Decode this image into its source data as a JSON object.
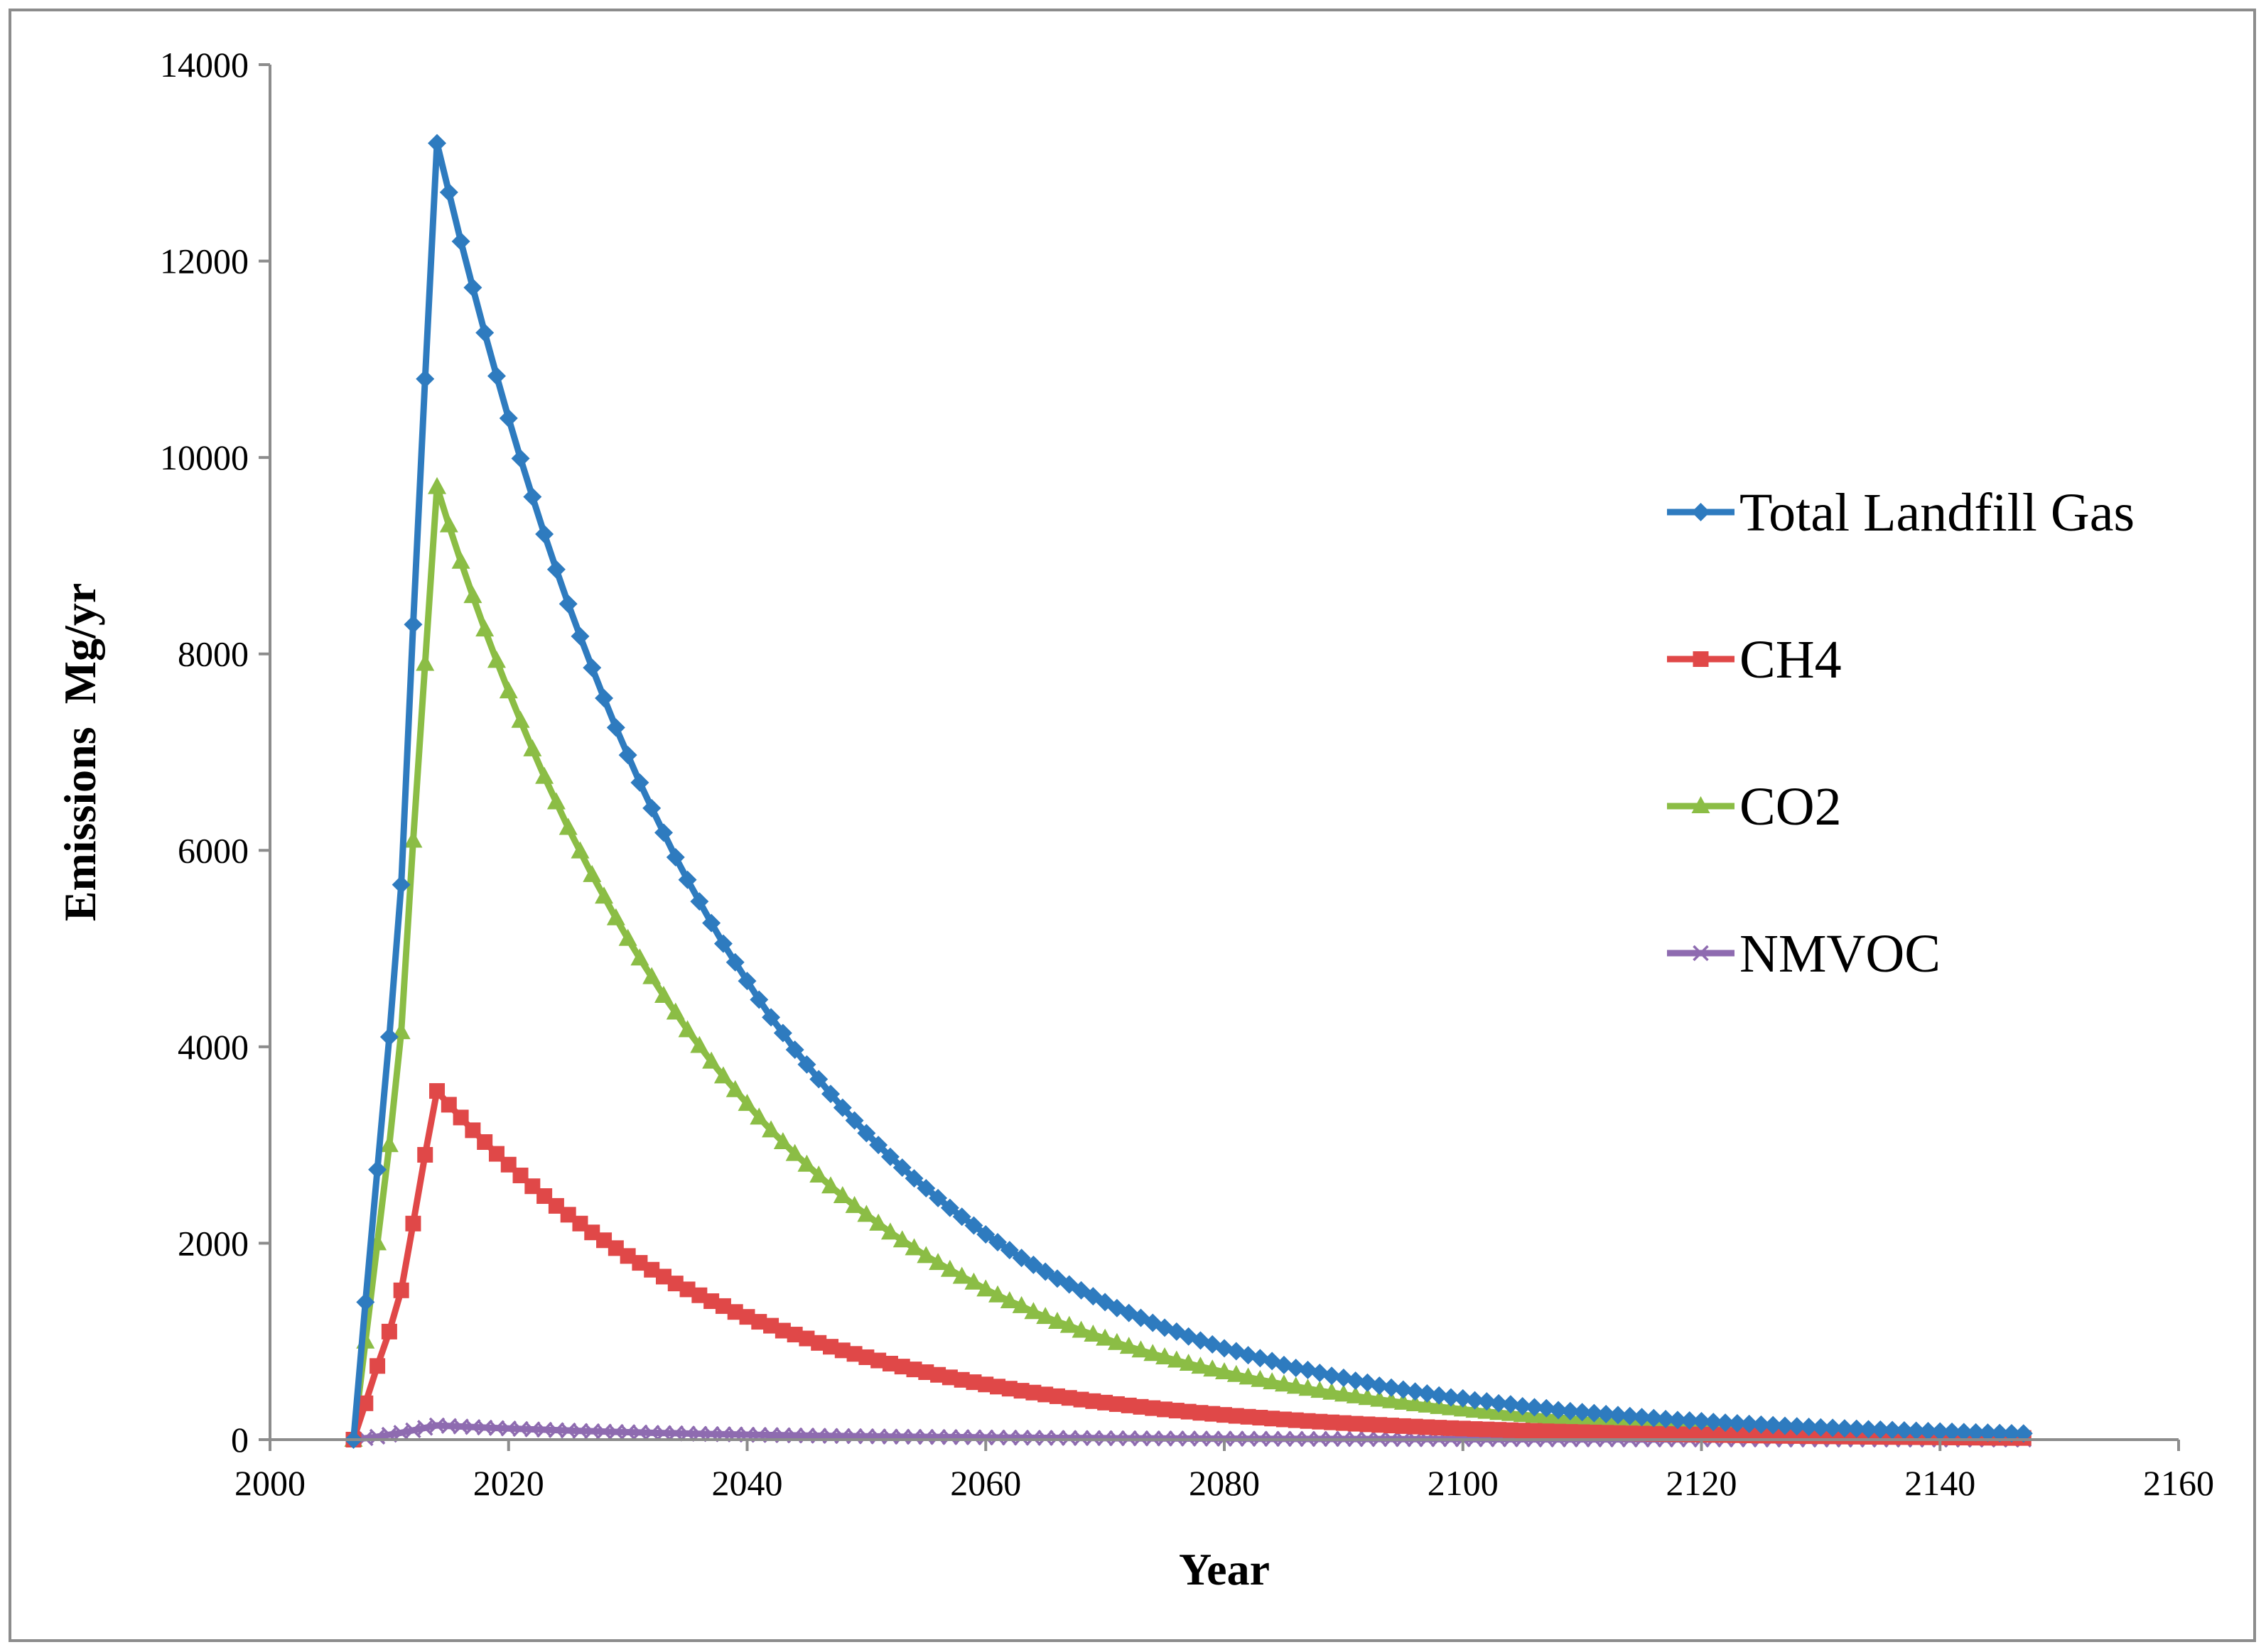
{
  "chart_data": {
    "type": "line",
    "title": "",
    "xlabel": "Year",
    "ylabel": "Emissions  Mg/yr",
    "xlim": [
      2000,
      2160
    ],
    "ylim": [
      0,
      14000
    ],
    "xticks": [
      2000,
      2020,
      2040,
      2060,
      2080,
      2100,
      2120,
      2140,
      2160
    ],
    "yticks": [
      0,
      2000,
      4000,
      6000,
      8000,
      10000,
      12000,
      14000
    ],
    "grid": false,
    "legend_position": "right",
    "x_start": 2007,
    "x_end": 2147,
    "series": [
      {
        "name": "Total Landfill Gas",
        "color": "#2e7bbf",
        "marker": "diamond",
        "values": [
          0,
          1400,
          2750,
          4100,
          5650,
          8300,
          10800,
          13200,
          12700,
          12200,
          11730,
          11270,
          10830,
          10400,
          9990,
          9600,
          9220,
          8860,
          8510,
          8180,
          7860,
          7550,
          7250,
          6970,
          6690,
          6430,
          6180,
          5930,
          5700,
          5480,
          5260,
          5050,
          4860,
          4670,
          4480,
          4300,
          4140,
          3970,
          3820,
          3670,
          3520,
          3380,
          3250,
          3120,
          3000,
          2880,
          2770,
          2660,
          2560,
          2460,
          2360,
          2270,
          2180,
          2090,
          2010,
          1930,
          1850,
          1780,
          1710,
          1640,
          1580,
          1520,
          1460,
          1400,
          1340,
          1290,
          1240,
          1190,
          1140,
          1100,
          1050,
          1010,
          970,
          930,
          900,
          860,
          830,
          800,
          760,
          730,
          710,
          680,
          650,
          630,
          600,
          580,
          550,
          530,
          510,
          490,
          470,
          450,
          430,
          420,
          400,
          390,
          370,
          360,
          340,
          330,
          320,
          300,
          290,
          280,
          270,
          260,
          250,
          240,
          230,
          220,
          210,
          200,
          195,
          188,
          180,
          173,
          166,
          160,
          153,
          147,
          141,
          136,
          130,
          125,
          120,
          115,
          111,
          106,
          102,
          98,
          94,
          90,
          87,
          83,
          80,
          77,
          74,
          71,
          68,
          65,
          63
        ]
      },
      {
        "name": "CH4",
        "color": "#e04848",
        "marker": "square",
        "values": [
          0,
          370,
          750,
          1100,
          1520,
          2200,
          2900,
          3550,
          3410,
          3280,
          3150,
          3030,
          2910,
          2800,
          2690,
          2580,
          2480,
          2380,
          2290,
          2200,
          2110,
          2030,
          1950,
          1870,
          1800,
          1730,
          1660,
          1590,
          1530,
          1470,
          1410,
          1360,
          1300,
          1250,
          1200,
          1160,
          1110,
          1070,
          1030,
          985,
          946,
          909,
          873,
          839,
          806,
          774,
          744,
          715,
          687,
          660,
          634,
          609,
          585,
          562,
          540,
          519,
          498,
          479,
          460,
          442,
          425,
          408,
          392,
          377,
          362,
          348,
          334,
          321,
          308,
          296,
          285,
          273,
          263,
          252,
          242,
          233,
          224,
          215,
          206,
          198,
          190,
          183,
          176,
          169,
          162,
          156,
          150,
          144,
          138,
          133,
          127,
          122,
          117,
          113,
          108,
          104,
          100,
          96,
          92,
          89,
          85,
          82,
          79,
          76,
          73,
          70,
          67,
          64,
          62,
          59,
          57,
          55,
          53,
          51,
          49,
          47,
          45,
          43,
          41,
          40,
          38,
          37,
          35,
          34,
          33,
          31,
          30,
          29,
          28,
          27,
          26,
          25,
          24,
          23,
          22,
          21,
          20,
          19,
          18,
          17,
          17
        ]
      },
      {
        "name": "CO2",
        "color": "#8bbd45",
        "marker": "triangle",
        "values": [
          0,
          1000,
          2000,
          3000,
          4150,
          6100,
          7900,
          9700,
          9310,
          8940,
          8590,
          8250,
          7930,
          7620,
          7320,
          7030,
          6750,
          6490,
          6230,
          5990,
          5750,
          5530,
          5310,
          5100,
          4900,
          4710,
          4520,
          4350,
          4170,
          4010,
          3850,
          3700,
          3560,
          3420,
          3280,
          3150,
          3030,
          2910,
          2800,
          2690,
          2580,
          2480,
          2380,
          2290,
          2200,
          2110,
          2030,
          1950,
          1870,
          1800,
          1730,
          1660,
          1600,
          1530,
          1470,
          1410,
          1360,
          1300,
          1250,
          1200,
          1160,
          1110,
          1070,
          1030,
          985,
          946,
          909,
          873,
          839,
          806,
          774,
          744,
          715,
          687,
          660,
          634,
          609,
          585,
          562,
          540,
          519,
          498,
          479,
          460,
          442,
          425,
          408,
          392,
          377,
          362,
          348,
          334,
          321,
          308,
          296,
          285,
          273,
          263,
          252,
          242,
          233,
          224,
          215,
          206,
          198,
          190,
          183,
          176,
          169,
          162,
          156,
          150,
          144,
          138,
          133,
          127,
          122,
          117,
          113,
          108,
          104,
          100,
          96,
          92,
          89,
          85,
          82,
          79,
          76,
          73,
          70,
          67,
          64,
          62,
          59,
          57,
          55,
          53,
          51
        ]
      },
      {
        "name": "NMVOC",
        "color": "#8e6bb0",
        "marker": "x",
        "values": [
          0,
          15,
          30,
          50,
          70,
          95,
          120,
          145,
          139,
          134,
          128,
          123,
          118,
          114,
          109,
          105,
          101,
          97,
          93,
          89,
          86,
          82,
          79,
          76,
          73,
          70,
          67,
          65,
          62,
          60,
          57,
          55,
          53,
          51,
          49,
          47,
          45,
          43,
          42,
          40,
          38,
          37,
          35,
          34,
          33,
          31,
          30,
          29,
          28,
          27,
          26,
          25,
          24,
          23,
          22,
          21,
          20,
          19,
          18,
          18,
          17,
          16,
          16,
          15,
          14,
          14,
          13,
          13,
          12,
          12,
          11,
          11,
          10,
          10,
          10,
          9,
          9,
          8,
          8,
          8,
          7,
          7,
          7,
          7,
          6,
          6,
          6,
          6,
          5,
          5,
          5,
          5,
          5,
          4,
          4,
          4,
          4,
          4,
          4,
          3,
          3,
          3,
          3,
          3,
          3,
          3,
          3,
          2,
          2,
          2,
          2,
          2,
          2,
          2,
          2,
          2,
          2,
          2,
          2,
          1,
          1,
          1,
          1,
          1,
          1,
          1,
          1,
          1,
          1,
          1,
          1,
          1,
          1,
          1,
          1,
          1,
          1,
          1,
          1,
          1,
          1
        ]
      }
    ]
  }
}
